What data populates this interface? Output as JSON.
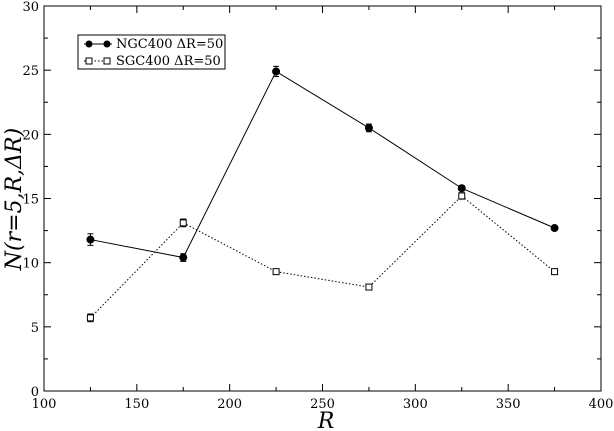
{
  "chart_data": {
    "type": "line",
    "xlabel": "R",
    "ylabel": "N(r=5,R,ΔR)",
    "xlim": [
      100,
      400
    ],
    "ylim": [
      0,
      30
    ],
    "x_ticks": [
      100,
      150,
      200,
      250,
      300,
      350,
      400
    ],
    "y_ticks": [
      0,
      5,
      10,
      15,
      20,
      25,
      30
    ],
    "grid": false,
    "legend_position": "top-left",
    "series": [
      {
        "name": "NGC400 ΔR=50",
        "marker": "filled-circle",
        "line": "solid",
        "x": [
          125,
          175,
          225,
          275,
          325,
          375
        ],
        "y": [
          11.8,
          10.4,
          24.9,
          20.5,
          15.8,
          12.7
        ],
        "err": [
          0.45,
          0.3,
          0.4,
          0.3,
          0.2,
          0.15
        ]
      },
      {
        "name": "SGC400 ΔR=50",
        "marker": "open-square",
        "line": "dotted",
        "x": [
          125,
          175,
          225,
          275,
          325,
          375
        ],
        "y": [
          5.7,
          13.1,
          9.3,
          8.1,
          15.2,
          9.3
        ],
        "err": [
          0.3,
          0.3,
          0.2,
          0.2,
          0.25,
          0.15
        ]
      }
    ]
  }
}
